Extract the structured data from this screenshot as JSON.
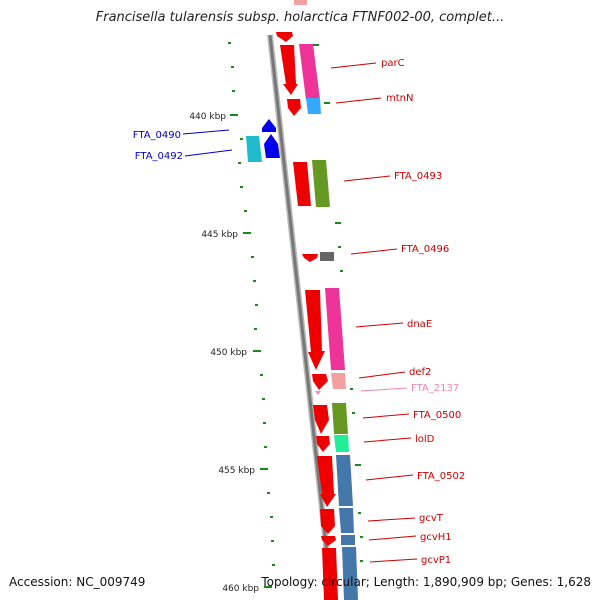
{
  "title": "Francisella tularensis subsp. holarctica FTNF002-00, complet...",
  "footer": {
    "accession": "Accession: NC_009749",
    "summary": "Topology: circular; Length: 1,890,909 bp; Genes: 1,628"
  },
  "colors": {
    "backbone": "#888888",
    "tick": "#1a7a1a",
    "forward_label": "#cc0000",
    "reverse_label": "#0000cc",
    "rna_label": "#ee88aa"
  },
  "scale_labels": [
    "440 kbp",
    "445 kbp",
    "450 kbp",
    "455 kbp",
    "460 kbp"
  ],
  "genes": [
    {
      "name": "parC",
      "strand": "forward"
    },
    {
      "name": "mtnN",
      "strand": "forward"
    },
    {
      "name": "FTA_0490",
      "strand": "reverse"
    },
    {
      "name": "FTA_0492",
      "strand": "reverse"
    },
    {
      "name": "FTA_0493",
      "strand": "forward"
    },
    {
      "name": "FTA_0496",
      "strand": "forward"
    },
    {
      "name": "dnaE",
      "strand": "forward"
    },
    {
      "name": "def2",
      "strand": "forward"
    },
    {
      "name": "FTA_2137",
      "strand": "forward"
    },
    {
      "name": "FTA_0500",
      "strand": "forward"
    },
    {
      "name": "lolD",
      "strand": "forward"
    },
    {
      "name": "FTA_0502",
      "strand": "forward"
    },
    {
      "name": "gcvT",
      "strand": "forward"
    },
    {
      "name": "gcvH1",
      "strand": "forward"
    },
    {
      "name": "gcvP1",
      "strand": "forward"
    }
  ]
}
